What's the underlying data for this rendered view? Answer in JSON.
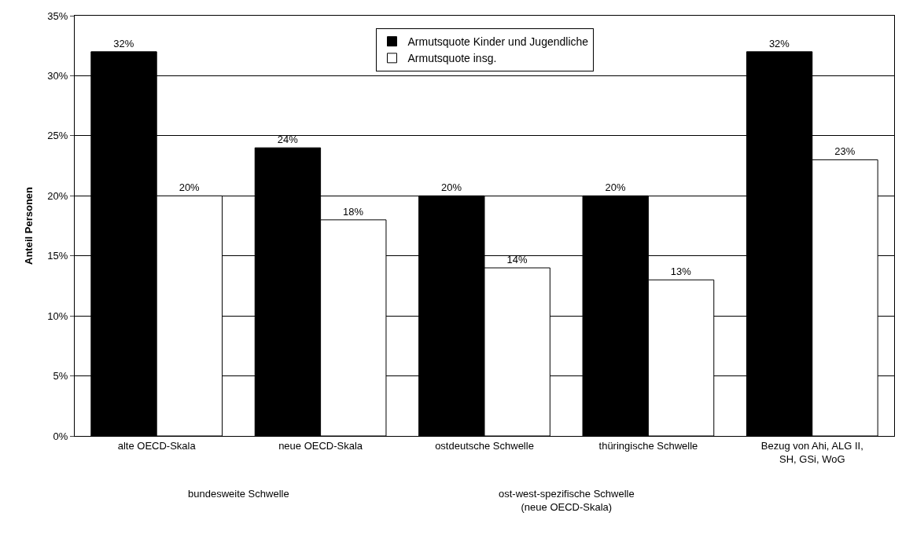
{
  "chart_data": {
    "type": "bar",
    "ylabel": "Anteil Personen",
    "categories": [
      "alte OECD-Skala",
      "neue OECD-Skala",
      "ostdeutsche Schwelle",
      "thüringische Schwelle",
      "Bezug von Ahi, ALG II,\nSH, GSi, WoG"
    ],
    "series": [
      {
        "name": "Armutsquote Kinder und Jugendliche",
        "color": "#000000",
        "values": [
          32,
          24,
          20,
          20,
          32
        ],
        "value_labels": [
          "32%",
          "24%",
          "20%",
          "20%",
          "32%"
        ]
      },
      {
        "name": "Armutsquote insg.",
        "color": "#ffffff",
        "values": [
          20,
          18,
          14,
          13,
          23
        ],
        "value_labels": [
          "20%",
          "18%",
          "14%",
          "13%",
          "23%"
        ]
      }
    ],
    "ylim": [
      0,
      35
    ],
    "yticks": [
      {
        "value": 0,
        "label": "0%"
      },
      {
        "value": 5,
        "label": "5%"
      },
      {
        "value": 10,
        "label": "10%"
      },
      {
        "value": 15,
        "label": "15%"
      },
      {
        "value": 20,
        "label": "20%"
      },
      {
        "value": 25,
        "label": "25%"
      },
      {
        "value": 30,
        "label": "30%"
      },
      {
        "value": 35,
        "label": "35%"
      }
    ],
    "grid": "y",
    "legend": "top",
    "annotations": [
      "bundesweite Schwelle",
      "ost-west-spezifische Schwelle\n(neue OECD-Skala)"
    ]
  }
}
